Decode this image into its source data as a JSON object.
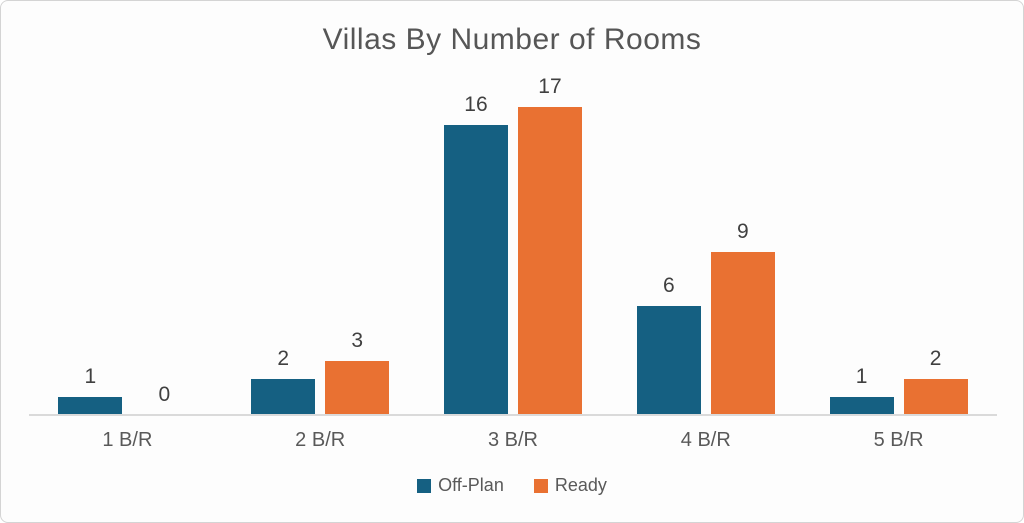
{
  "chart_data": {
    "type": "bar",
    "title": "Villas By Number of Rooms",
    "categories": [
      "1 B/R",
      "2 B/R",
      "3 B/R",
      "4 B/R",
      "5 B/R"
    ],
    "series": [
      {
        "name": "Off-Plan",
        "color": "#156082",
        "values": [
          1,
          2,
          16,
          6,
          1
        ]
      },
      {
        "name": "Ready",
        "color": "#E97132",
        "values": [
          0,
          3,
          17,
          9,
          2
        ]
      }
    ],
    "xlabel": "",
    "ylabel": "",
    "ylim": [
      0,
      17
    ],
    "grid": false,
    "data_labels": true,
    "legend_position": "bottom",
    "axis_line_color": "#dadada",
    "title_color": "#565656",
    "label_color": "#404040",
    "tick_color": "#595959"
  }
}
